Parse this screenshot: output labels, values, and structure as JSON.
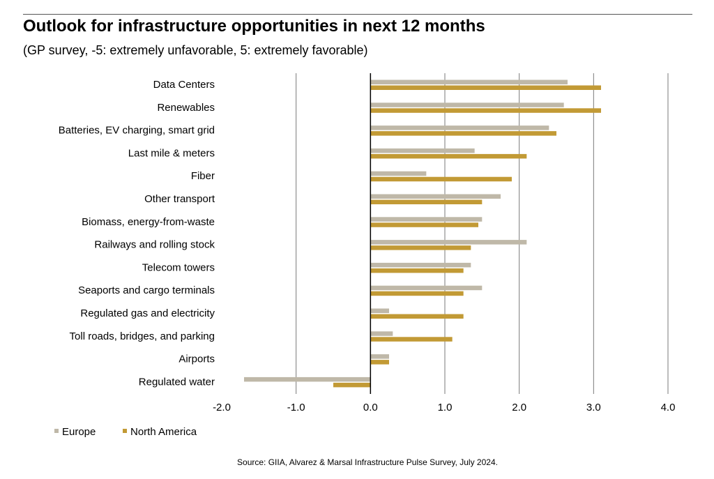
{
  "chart_data": {
    "type": "bar",
    "orientation": "horizontal",
    "title": "Outlook for infrastructure opportunities in next 12 months",
    "subtitle": "(GP survey, -5: extremely unfavorable, 5: extremely favorable)",
    "categories": [
      "Data Centers",
      "Renewables",
      "Batteries, EV charging, smart grid",
      "Last mile & meters",
      "Fiber",
      "Other transport",
      "Biomass, energy-from-waste",
      "Railways and rolling stock",
      "Telecom towers",
      "Seaports and cargo terminals",
      "Regulated gas and electricity",
      "Toll roads, bridges, and parking",
      "Airports",
      "Regulated water"
    ],
    "series": [
      {
        "name": "Europe",
        "color": "#bfb8a8",
        "values": [
          2.65,
          2.6,
          2.4,
          1.4,
          0.75,
          1.75,
          1.5,
          2.1,
          1.35,
          1.5,
          0.25,
          0.3,
          0.25,
          -1.7
        ]
      },
      {
        "name": "North America",
        "color": "#c29a35",
        "values": [
          3.1,
          3.1,
          2.5,
          2.1,
          1.9,
          1.5,
          1.45,
          1.35,
          1.25,
          1.25,
          1.25,
          1.1,
          0.25,
          -0.5
        ]
      }
    ],
    "xlim": [
      -2.0,
      4.0
    ],
    "xticks": [
      "-2.0",
      "-1.0",
      "0.0",
      "1.0",
      "2.0",
      "3.0",
      "4.0"
    ],
    "grid": "vertical",
    "legend": "bottom-left",
    "source": "Source: GIIA, Alvarez & Marsal Infrastructure Pulse Survey, July 2024."
  }
}
